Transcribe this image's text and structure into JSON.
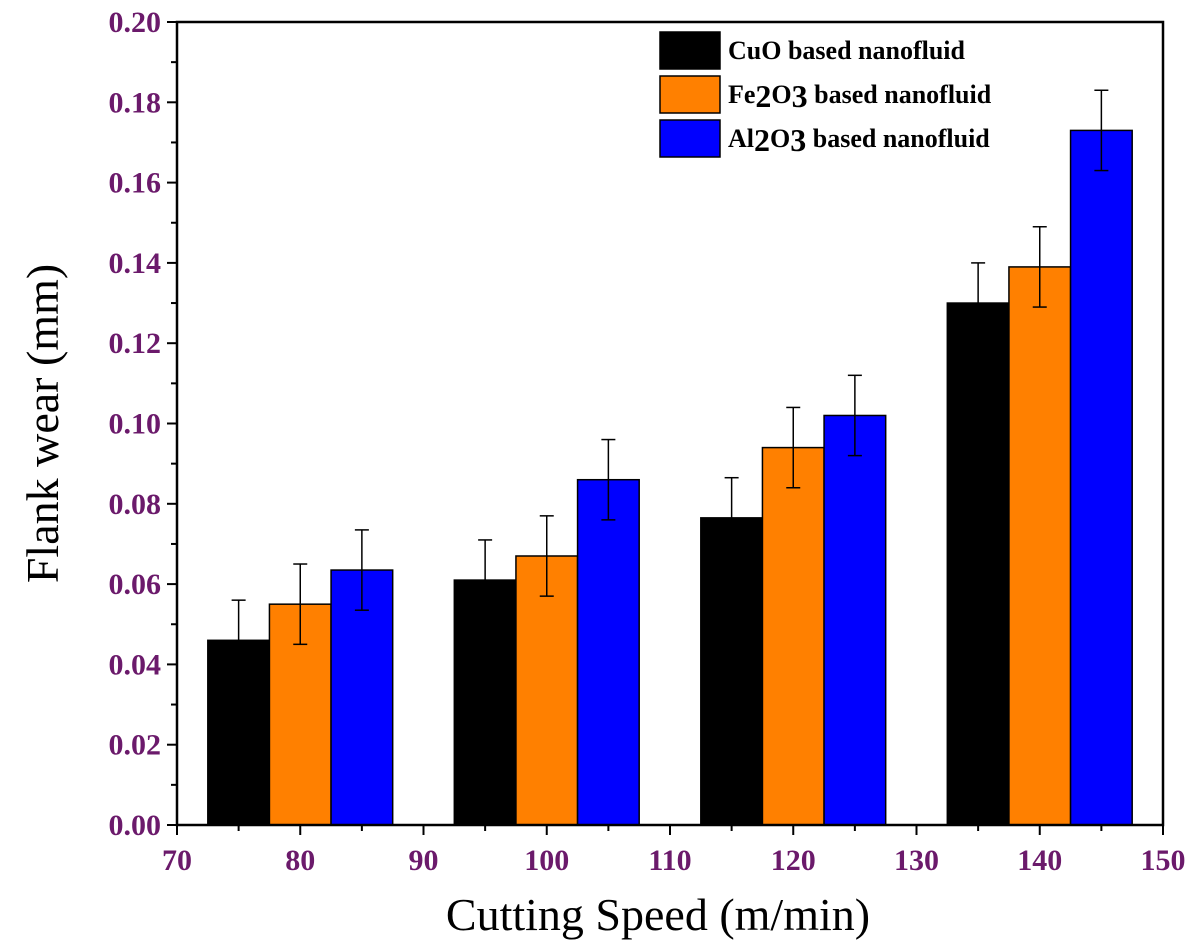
{
  "chart_data": {
    "type": "bar",
    "title": "",
    "xlabel": "Cutting Speed (m/min)",
    "ylabel": "Flank wear (mm)",
    "xlim": [
      70,
      150
    ],
    "ylim": [
      0,
      0.2
    ],
    "x_ticks": [
      "70",
      "80",
      "90",
      "100",
      "110",
      "120",
      "130",
      "140",
      "150"
    ],
    "x_tick_values": [
      70,
      80,
      90,
      100,
      110,
      120,
      130,
      140,
      150
    ],
    "y_ticks": [
      "0.00",
      "0.02",
      "0.04",
      "0.06",
      "0.08",
      "0.10",
      "0.12",
      "0.14",
      "0.16",
      "0.18",
      "0.20"
    ],
    "y_tick_values": [
      0,
      0.02,
      0.04,
      0.06,
      0.08,
      0.1,
      0.12,
      0.14,
      0.16,
      0.18,
      0.2
    ],
    "categories": [
      80,
      100,
      120,
      140
    ],
    "series": [
      {
        "name": "CuO based nanofluid",
        "legend_parts": [
          {
            "t": "CuO based nanofluid"
          }
        ],
        "color": "#000000",
        "offset": -5,
        "values": [
          0.046,
          0.061,
          0.0765,
          0.13
        ],
        "errors": [
          0.01,
          0.01,
          0.01,
          0.01
        ]
      },
      {
        "name": "Fe2O3 based nanofluid",
        "legend_parts": [
          {
            "t": "Fe"
          },
          {
            "t": "2",
            "sub": true
          },
          {
            "t": "O"
          },
          {
            "t": "3",
            "sub": true
          },
          {
            "t": " based nanofluid"
          }
        ],
        "color": "#ff8000",
        "offset": 0,
        "values": [
          0.055,
          0.067,
          0.094,
          0.139
        ],
        "errors": [
          0.01,
          0.01,
          0.01,
          0.01
        ]
      },
      {
        "name": "Al2O3 based nanofluid",
        "legend_parts": [
          {
            "t": "Al"
          },
          {
            "t": "2",
            "sub": true
          },
          {
            "t": "O"
          },
          {
            "t": "3",
            "sub": true
          },
          {
            "t": " based nanofluid"
          }
        ],
        "color": "#0000ff",
        "offset": 5,
        "values": [
          0.0635,
          0.086,
          0.102,
          0.173
        ],
        "errors": [
          0.01,
          0.01,
          0.01,
          0.01
        ]
      }
    ],
    "bar_width_units": 5,
    "legend_position": "top-right",
    "grid": false
  }
}
